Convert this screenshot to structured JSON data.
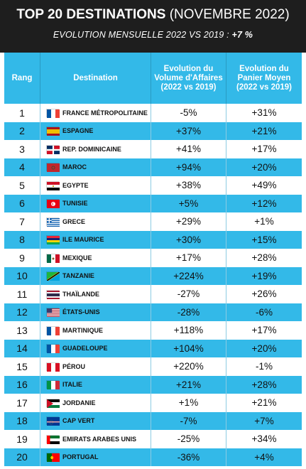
{
  "header": {
    "title_strong": "TOP 20 DESTINATIONS",
    "title_light": "(NOVEMBRE 2022)",
    "subtitle_main": "EVOLUTION MENSUELLE 2022 VS 2019 :",
    "subtitle_value": "+7 %"
  },
  "table": {
    "headers": {
      "rang": "Rang",
      "destination": "Destination",
      "volume": "Evolution du Volume d'Affaires (2022 vs 2019)",
      "panier": "Evolution du Panier Moyen (2022 vs 2019)"
    },
    "rows": [
      {
        "rang": "1",
        "destination": "FRANCE MÉTROPOLITAINE",
        "volume": "-5%",
        "panier": "+31%",
        "flag_icon": "france-flag-icon"
      },
      {
        "rang": "2",
        "destination": "ESPAGNE",
        "volume": "+37%",
        "panier": "+21%",
        "flag_icon": "spain-flag-icon"
      },
      {
        "rang": "3",
        "destination": "REP. DOMINICAINE",
        "volume": "+41%",
        "panier": "+17%",
        "flag_icon": "dominican-republic-flag-icon"
      },
      {
        "rang": "4",
        "destination": "MAROC",
        "volume": "+94%",
        "panier": "+20%",
        "flag_icon": "morocco-flag-icon"
      },
      {
        "rang": "5",
        "destination": "EGYPTE",
        "volume": "+38%",
        "panier": "+49%",
        "flag_icon": "egypt-flag-icon"
      },
      {
        "rang": "6",
        "destination": "TUNISIE",
        "volume": "+5%",
        "panier": "+12%",
        "flag_icon": "tunisia-flag-icon"
      },
      {
        "rang": "7",
        "destination": "GRECE",
        "volume": "+29%",
        "panier": "+1%",
        "flag_icon": "greece-flag-icon"
      },
      {
        "rang": "8",
        "destination": "ILE MAURICE",
        "volume": "+30%",
        "panier": "+15%",
        "flag_icon": "mauritius-flag-icon"
      },
      {
        "rang": "9",
        "destination": "MEXIQUE",
        "volume": "+17%",
        "panier": "+28%",
        "flag_icon": "mexico-flag-icon"
      },
      {
        "rang": "10",
        "destination": "TANZANIE",
        "volume": "+224%",
        "panier": "+19%",
        "flag_icon": "tanzania-flag-icon"
      },
      {
        "rang": "11",
        "destination": "THAÏLANDE",
        "volume": "-27%",
        "panier": "+26%",
        "flag_icon": "thailand-flag-icon"
      },
      {
        "rang": "12",
        "destination": "ÉTATS-UNIS",
        "volume": "-28%",
        "panier": "-6%",
        "flag_icon": "usa-flag-icon"
      },
      {
        "rang": "13",
        "destination": "MARTINIQUE",
        "volume": "+118%",
        "panier": "+17%",
        "flag_icon": "france-flag-icon"
      },
      {
        "rang": "14",
        "destination": "GUADELOUPE",
        "volume": "+104%",
        "panier": "+20%",
        "flag_icon": "france-flag-icon"
      },
      {
        "rang": "15",
        "destination": "PÉROU",
        "volume": "+220%",
        "panier": "-1%",
        "flag_icon": "peru-flag-icon"
      },
      {
        "rang": "16",
        "destination": "ITALIE",
        "volume": "+21%",
        "panier": "+28%",
        "flag_icon": "italy-flag-icon"
      },
      {
        "rang": "17",
        "destination": "JORDANIE",
        "volume": "+1%",
        "panier": "+21%",
        "flag_icon": "jordan-flag-icon"
      },
      {
        "rang": "18",
        "destination": "CAP VERT",
        "volume": "-7%",
        "panier": "+7%",
        "flag_icon": "cape-verde-flag-icon"
      },
      {
        "rang": "19",
        "destination": "EMIRATS ARABES UNIS",
        "volume": "-25%",
        "panier": "+34%",
        "flag_icon": "uae-flag-icon"
      },
      {
        "rang": "20",
        "destination": "PORTUGAL",
        "volume": "-36%",
        "panier": "+4%",
        "flag_icon": "portugal-flag-icon"
      }
    ]
  },
  "colors": {
    "header_bg": "#1e1e1e",
    "accent_blue": "#33b9e8",
    "white": "#ffffff"
  }
}
